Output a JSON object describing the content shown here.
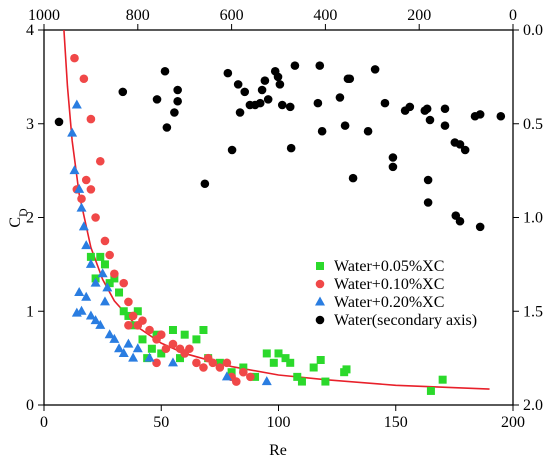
{
  "chart_data": {
    "type": "scatter",
    "xlabel": "Re",
    "ylabel_base": "C",
    "ylabel_subscript": "D",
    "xlim": [
      0,
      200
    ],
    "xticks": [
      0,
      50,
      100,
      150,
      200
    ],
    "ylim": [
      0,
      4
    ],
    "yticks": [
      0,
      1,
      2,
      3,
      4
    ],
    "x2lim": [
      1000,
      0
    ],
    "x2ticks": [
      1000,
      800,
      600,
      400,
      200,
      0
    ],
    "y2lim": [
      2.0,
      0.0
    ],
    "y2ticks": [
      {
        "value": 0.0,
        "label": "0.0"
      },
      0.5,
      {
        "value": 1.0,
        "label": "1.0"
      },
      1.5,
      {
        "value": 2.0,
        "label": "2.0"
      }
    ],
    "legend": "lower right",
    "fit_curve": {
      "color": "#e8202a",
      "x": [
        8.5,
        10,
        12,
        15,
        20,
        25,
        30,
        40,
        50,
        60,
        80,
        100,
        120,
        150,
        190
      ],
      "values": [
        4.0,
        3.4,
        2.82,
        2.25,
        1.68,
        1.34,
        1.11,
        0.83,
        0.66,
        0.55,
        0.41,
        0.32,
        0.27,
        0.21,
        0.17
      ]
    },
    "series": [
      {
        "name": "Water+0.05%XC",
        "color": "#2bd92b",
        "marker": "square",
        "x": [
          20,
          22,
          24,
          26,
          28,
          30,
          32,
          34,
          36,
          38,
          40,
          42,
          44,
          46,
          48,
          50,
          55,
          58,
          60,
          65,
          68,
          70,
          75,
          80,
          85,
          90,
          95,
          98,
          100,
          103,
          105,
          108,
          110,
          115,
          118,
          120,
          128,
          129,
          165,
          170
        ],
        "values": [
          1.58,
          1.35,
          1.58,
          1.5,
          1.3,
          1.35,
          1.2,
          1.0,
          0.95,
          0.85,
          1.0,
          0.7,
          0.5,
          0.6,
          0.75,
          0.55,
          0.8,
          0.5,
          0.75,
          0.7,
          0.8,
          0.5,
          0.45,
          0.35,
          0.4,
          0.3,
          0.55,
          0.45,
          0.55,
          0.5,
          0.45,
          0.3,
          0.25,
          0.4,
          0.48,
          0.25,
          0.35,
          0.38,
          0.15,
          0.27
        ]
      },
      {
        "name": "Water+0.10%XC",
        "color": "#f04848",
        "marker": "circle",
        "x": [
          13,
          17,
          20,
          14,
          16,
          18,
          20,
          22,
          24,
          26,
          28,
          30,
          34,
          36,
          38,
          40,
          42,
          45,
          48,
          50,
          52,
          55,
          58,
          60,
          62,
          65,
          68,
          70,
          72,
          75,
          78,
          80,
          82,
          85,
          88,
          36,
          48
        ],
        "values": [
          3.7,
          3.48,
          3.05,
          2.3,
          2.2,
          2.4,
          2.3,
          2.0,
          2.6,
          1.75,
          1.6,
          1.4,
          1.3,
          1.1,
          0.95,
          0.85,
          0.9,
          0.8,
          0.7,
          0.75,
          0.6,
          0.65,
          0.6,
          0.55,
          0.6,
          0.45,
          0.4,
          0.5,
          0.45,
          0.4,
          0.45,
          0.3,
          0.25,
          0.35,
          0.3,
          0.85,
          0.45
        ]
      },
      {
        "name": "Water+0.20%XC",
        "color": "#2a7de1",
        "marker": "triangle",
        "x": [
          12,
          14,
          13,
          15,
          16,
          17,
          18,
          20,
          22,
          14,
          16,
          18,
          20,
          22,
          24,
          26,
          28,
          30,
          32,
          34,
          36,
          38,
          40,
          25,
          27,
          45,
          55,
          78,
          95,
          15
        ],
        "values": [
          2.9,
          3.2,
          2.5,
          2.3,
          2.1,
          1.9,
          1.7,
          1.5,
          1.3,
          0.98,
          1.0,
          1.15,
          0.95,
          0.9,
          0.85,
          1.1,
          0.75,
          0.7,
          0.6,
          0.55,
          0.65,
          0.5,
          0.6,
          1.4,
          1.25,
          0.5,
          0.45,
          0.3,
          0.25,
          1.2
        ]
      },
      {
        "name": "Water(secondary axis)",
        "color": "#000000",
        "marker": "circle",
        "axis": "y2",
        "x": [
          968,
          832,
          759,
          742,
          738,
          715,
          715,
          722,
          657,
          608,
          599,
          586,
          582,
          572,
          561,
          550,
          539,
          535,
          529,
          522,
          507,
          501,
          497,
          492,
          475,
          473,
          465,
          416,
          412,
          407,
          369,
          358,
          352,
          348,
          341,
          309,
          294,
          273,
          256,
          256,
          230,
          220,
          188,
          183,
          177,
          181,
          181,
          145,
          145,
          124,
          113,
          102,
          122,
          113,
          81,
          70,
          70,
          26
        ],
        "values": [
          0.49,
          0.33,
          0.37,
          0.22,
          0.52,
          0.32,
          0.38,
          0.44,
          0.82,
          0.23,
          0.64,
          0.29,
          0.44,
          0.33,
          0.4,
          0.4,
          0.39,
          0.32,
          0.27,
          0.37,
          0.22,
          0.25,
          0.29,
          0.4,
          0.41,
          0.63,
          0.19,
          0.39,
          0.19,
          0.54,
          0.36,
          0.51,
          0.26,
          0.26,
          0.79,
          0.54,
          0.21,
          0.39,
          0.68,
          0.73,
          0.43,
          0.41,
          0.43,
          0.42,
          0.48,
          0.8,
          0.92,
          0.42,
          0.51,
          0.6,
          0.61,
          0.64,
          0.99,
          1.02,
          0.46,
          0.45,
          1.05,
          0.46
        ]
      }
    ]
  }
}
